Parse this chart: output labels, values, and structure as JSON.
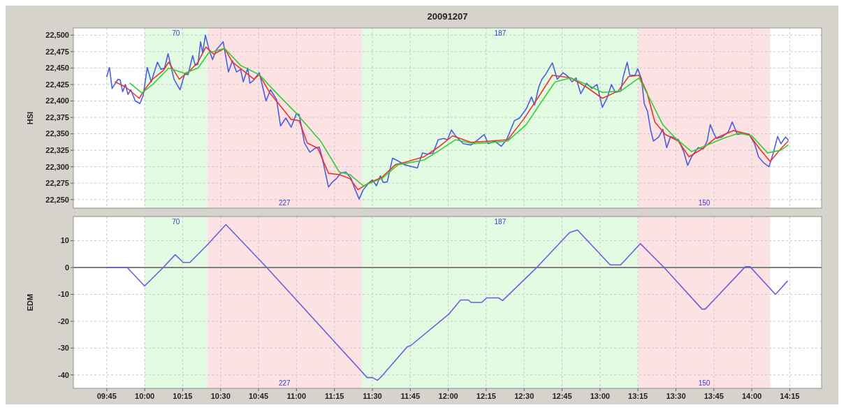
{
  "chart_data": [
    {
      "type": "line",
      "title": "20091207",
      "ylabel": "HSI",
      "xlim": [
        9.53,
        14.46
      ],
      "ylim": [
        22237,
        22511
      ],
      "xticks": [
        {
          "value": 9.75,
          "label": null
        },
        {
          "value": 10,
          "label": null
        },
        {
          "value": 10.25,
          "label": null
        },
        {
          "value": 10.5,
          "label": null
        },
        {
          "value": 10.75,
          "label": null
        },
        {
          "value": 11,
          "label": null
        },
        {
          "value": 11.25,
          "label": null
        },
        {
          "value": 11.5,
          "label": null
        },
        {
          "value": 11.75,
          "label": null
        },
        {
          "value": 12,
          "label": null
        },
        {
          "value": 12.25,
          "label": null
        },
        {
          "value": 12.5,
          "label": null
        },
        {
          "value": 12.75,
          "label": null
        },
        {
          "value": 13,
          "label": null
        },
        {
          "value": 13.25,
          "label": null
        },
        {
          "value": 13.5,
          "label": null
        },
        {
          "value": 13.75,
          "label": null
        },
        {
          "value": 14,
          "label": null
        },
        {
          "value": 14.25,
          "label": null
        }
      ],
      "yticks": [
        {
          "value": 22250,
          "label": "22,250"
        },
        {
          "value": 22275,
          "label": "22,275"
        },
        {
          "value": 22300,
          "label": "22,300"
        },
        {
          "value": 22325,
          "label": "22,325"
        },
        {
          "value": 22350,
          "label": "22,350"
        },
        {
          "value": 22375,
          "label": "22,375"
        },
        {
          "value": 22400,
          "label": "22,400"
        },
        {
          "value": 22425,
          "label": "22,425"
        },
        {
          "value": 22450,
          "label": "22,450"
        },
        {
          "value": 22475,
          "label": "22,475"
        },
        {
          "value": 22500,
          "label": "22,500"
        }
      ],
      "tick_labels": "y",
      "grid": true,
      "bands": [
        {
          "axis": "x",
          "from": 10,
          "to": 10.412,
          "label": "70",
          "color": "#e2fbe2"
        },
        {
          "axis": "x",
          "from": 10.412,
          "to": 11.431,
          "label": "227",
          "color": "#fce2e2"
        },
        {
          "axis": "x",
          "from": 11.431,
          "to": 13.253,
          "label": "187",
          "color": "#e2fbe2"
        },
        {
          "axis": "x",
          "from": 13.253,
          "to": 14.121,
          "label": "150",
          "color": "#fce2e2"
        }
      ],
      "series": [
        {
          "color": "#4a5ee0",
          "x": [
            9.75,
            9.768,
            9.785,
            9.824,
            9.838,
            9.855,
            9.873,
            9.89,
            9.908,
            9.938,
            9.968,
            9.99,
            10.017,
            10.043,
            10.084,
            10.108,
            10.131,
            10.154,
            10.193,
            10.233,
            10.263,
            10.286,
            10.316,
            10.333,
            10.351,
            10.368,
            10.382,
            10.4,
            10.424,
            10.447,
            10.473,
            10.517,
            10.552,
            10.578,
            10.605,
            10.632,
            10.649,
            10.679,
            10.693,
            10.716,
            10.755,
            10.799,
            10.829,
            10.869,
            10.895,
            10.93,
            10.965,
            11.0,
            11.018,
            11.053,
            11.088,
            11.123,
            11.15,
            11.167,
            11.211,
            11.238,
            11.264,
            11.29,
            11.325,
            11.36,
            11.387,
            11.413,
            11.44,
            11.475,
            11.5,
            11.527,
            11.553,
            11.571,
            11.598,
            11.633,
            11.668,
            11.712,
            11.796,
            11.83,
            11.865,
            11.9,
            11.934,
            11.969,
            11.995,
            12.021,
            12.047,
            12.099,
            12.15,
            12.185,
            12.237,
            12.263,
            12.306,
            12.349,
            12.384,
            12.436,
            12.47,
            12.514,
            12.548,
            12.569,
            12.596,
            12.617,
            12.643,
            12.686,
            12.718,
            12.756,
            12.79,
            12.816,
            12.842,
            12.873,
            12.911,
            12.946,
            12.98,
            13.015,
            13.049,
            13.075,
            13.101,
            13.136,
            13.153,
            13.179,
            13.196,
            13.231,
            13.248,
            13.274,
            13.291,
            13.313,
            13.334,
            13.352,
            13.386,
            13.413,
            13.439,
            13.465,
            13.517,
            13.551,
            13.577,
            13.603,
            13.646,
            13.68,
            13.706,
            13.726,
            13.749,
            13.766,
            13.801,
            13.845,
            13.871,
            13.905,
            13.948,
            13.983,
            14.018,
            14.044,
            14.078,
            14.113,
            14.139,
            14.17,
            14.191,
            14.222,
            14.239
          ],
          "values": [
            22437,
            22451,
            22419,
            22433,
            22432,
            22414,
            22425,
            22410,
            22417,
            22400,
            22396,
            22408,
            22451,
            22429,
            22459,
            22448,
            22450,
            22472,
            22433,
            22417,
            22441,
            22440,
            22469,
            22454,
            22456,
            22490,
            22473,
            22500,
            22478,
            22463,
            22478,
            22490,
            22444,
            22461,
            22444,
            22448,
            22429,
            22450,
            22427,
            22431,
            22443,
            22400,
            22417,
            22402,
            22362,
            22374,
            22360,
            22381,
            22379,
            22336,
            22322,
            22328,
            22330,
            22316,
            22269,
            22277,
            22282,
            22290,
            22292,
            22282,
            22265,
            22251,
            22265,
            22275,
            22280,
            22271,
            22286,
            22276,
            22277,
            22313,
            22309,
            22303,
            22298,
            22321,
            22319,
            22321,
            22341,
            22343,
            22341,
            22356,
            22347,
            22335,
            22333,
            22339,
            22349,
            22335,
            22339,
            22331,
            22341,
            22370,
            22374,
            22388,
            22406,
            22394,
            22421,
            22433,
            22441,
            22458,
            22433,
            22443,
            22437,
            22429,
            22435,
            22411,
            22427,
            22419,
            22425,
            22390,
            22406,
            22425,
            22413,
            22415,
            22437,
            22459,
            22439,
            22439,
            22449,
            22433,
            22396,
            22384,
            22355,
            22339,
            22345,
            22357,
            22329,
            22346,
            22341,
            22323,
            22302,
            22315,
            22329,
            22327,
            22339,
            22364,
            22351,
            22343,
            22345,
            22353,
            22368,
            22349,
            22351,
            22349,
            22335,
            22315,
            22306,
            22300,
            22319,
            22346,
            22335,
            22345,
            22341
          ]
        },
        {
          "color": "#f03030",
          "x": [
            9.806,
            9.876,
            9.964,
            9.999,
            10.052,
            10.122,
            10.158,
            10.228,
            10.298,
            10.351,
            10.403,
            10.456,
            10.526,
            10.578,
            10.649,
            10.72,
            10.755,
            10.825,
            10.913,
            10.965,
            11.018,
            11.071,
            11.141,
            11.211,
            11.282,
            11.352,
            11.405,
            11.475,
            11.563,
            11.651,
            11.721,
            11.839,
            11.943,
            12.029,
            12.15,
            12.271,
            12.392,
            12.496,
            12.6,
            12.686,
            12.807,
            12.911,
            13.015,
            13.119,
            13.188,
            13.257,
            13.309,
            13.361,
            13.43,
            13.516,
            13.586,
            13.672,
            13.758,
            13.879,
            13.983,
            14.052,
            14.121,
            14.19,
            14.239
          ],
          "values": [
            22429,
            22421,
            22404,
            22417,
            22433,
            22446,
            22459,
            22433,
            22446,
            22459,
            22482,
            22471,
            22480,
            22459,
            22446,
            22433,
            22440,
            22412,
            22387,
            22372,
            22370,
            22336,
            22328,
            22290,
            22288,
            22282,
            22265,
            22275,
            22284,
            22303,
            22307,
            22315,
            22331,
            22347,
            22337,
            22339,
            22341,
            22372,
            22408,
            22439,
            22435,
            22421,
            22404,
            22415,
            22437,
            22439,
            22413,
            22368,
            22349,
            22339,
            22315,
            22327,
            22343,
            22355,
            22349,
            22327,
            22308,
            22327,
            22339
          ]
        },
        {
          "color": "#30d030",
          "x": [
            9.903,
            9.982,
            10.052,
            10.158,
            10.263,
            10.351,
            10.421,
            10.526,
            10.632,
            10.755,
            10.86,
            11.0,
            11.159,
            11.282,
            11.352,
            11.44,
            11.563,
            11.668,
            11.839,
            11.943,
            12.047,
            12.168,
            12.289,
            12.392,
            12.514,
            12.6,
            12.704,
            12.807,
            12.911,
            13.015,
            13.136,
            13.257,
            13.326,
            13.413,
            13.499,
            13.603,
            13.706,
            13.81,
            13.914,
            14.0,
            14.104,
            14.19,
            14.239
          ],
          "values": [
            22427,
            22412,
            22425,
            22450,
            22442,
            22450,
            22473,
            22480,
            22454,
            22440,
            22414,
            22381,
            22339,
            22292,
            22288,
            22271,
            22282,
            22303,
            22310,
            22325,
            22341,
            22335,
            22337,
            22339,
            22364,
            22394,
            22429,
            22435,
            22425,
            22413,
            22415,
            22435,
            22404,
            22364,
            22343,
            22323,
            22333,
            22343,
            22351,
            22347,
            22321,
            22325,
            22333
          ]
        }
      ]
    },
    {
      "type": "line",
      "ylabel": "EDM",
      "xlim": [
        9.53,
        14.46
      ],
      "ylim": [
        -45,
        19
      ],
      "xticks": [
        {
          "value": 9.75,
          "label": "09:45"
        },
        {
          "value": 10,
          "label": "10:00"
        },
        {
          "value": 10.25,
          "label": "10:15"
        },
        {
          "value": 10.5,
          "label": "10:30"
        },
        {
          "value": 10.75,
          "label": "10:45"
        },
        {
          "value": 11,
          "label": "11:00"
        },
        {
          "value": 11.25,
          "label": "11:15"
        },
        {
          "value": 11.5,
          "label": "11:30"
        },
        {
          "value": 11.75,
          "label": "11:45"
        },
        {
          "value": 12,
          "label": "12:00"
        },
        {
          "value": 12.25,
          "label": "12:15"
        },
        {
          "value": 12.5,
          "label": "12:30"
        },
        {
          "value": 12.75,
          "label": "12:45"
        },
        {
          "value": 13,
          "label": "13:00"
        },
        {
          "value": 13.25,
          "label": "13:15"
        },
        {
          "value": 13.5,
          "label": "13:30"
        },
        {
          "value": 13.75,
          "label": "13:45"
        },
        {
          "value": 14,
          "label": "14:00"
        },
        {
          "value": 14.25,
          "label": "14:15"
        }
      ],
      "yticks": [
        -40,
        -30,
        -20,
        -10,
        0,
        10
      ],
      "grid": true,
      "ref_lines": [
        {
          "axis": "y",
          "value": 0,
          "color": "#808080"
        }
      ],
      "bands": [
        {
          "axis": "x",
          "from": 10,
          "to": 10.412,
          "label": "70",
          "color": "#e2fbe2"
        },
        {
          "axis": "x",
          "from": 10.412,
          "to": 11.431,
          "label": "227",
          "color": "#fce2e2"
        },
        {
          "axis": "x",
          "from": 11.431,
          "to": 13.253,
          "label": "187",
          "color": "#e2fbe2"
        },
        {
          "axis": "x",
          "from": 13.253,
          "to": 14.121,
          "label": "150",
          "color": "#fce2e2"
        }
      ],
      "series": [
        {
          "color": "#6a5ee0",
          "x": [
            9.75,
            9.885,
            9.999,
            10.122,
            10.201,
            10.254,
            10.298,
            10.412,
            10.535,
            10.804,
            11.466,
            11.501,
            11.533,
            11.563,
            11.73,
            11.754,
            12.003,
            12.081,
            12.133,
            12.15,
            12.22,
            12.254,
            12.332,
            12.358,
            12.583,
            12.799,
            12.851,
            13.067,
            13.136,
            13.266,
            13.422,
            13.672,
            13.693,
            13.957,
            13.988,
            14.156,
            14.234
          ],
          "values": [
            0,
            0,
            -6.9,
            0,
            4.8,
            1.9,
            1.9,
            8.4,
            16,
            0,
            -41,
            -41,
            -42,
            -40.4,
            -29.5,
            -29,
            -17.4,
            -12.1,
            -12.1,
            -13,
            -13,
            -11.3,
            -11.3,
            -12.3,
            0,
            13,
            14,
            1,
            1,
            8.9,
            0,
            -15.5,
            -15.5,
            0.3,
            0.3,
            -10,
            -5.1
          ]
        }
      ]
    }
  ]
}
